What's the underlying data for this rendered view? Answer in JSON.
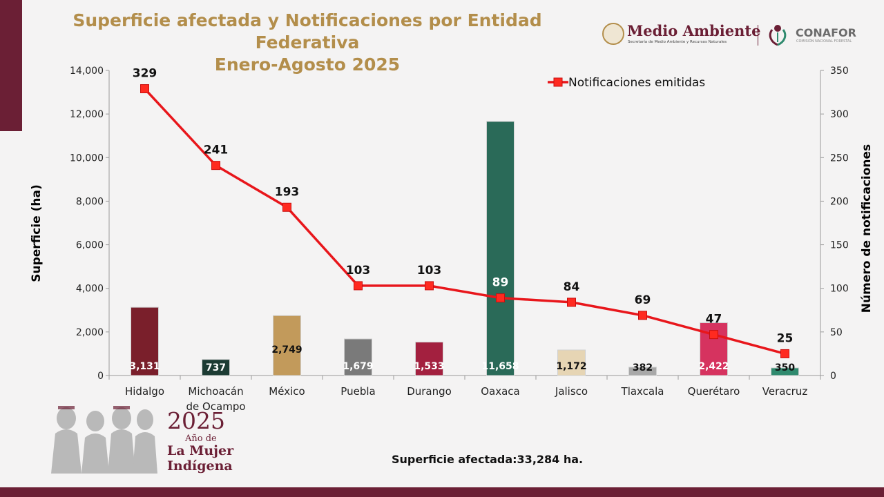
{
  "title_line1": "Superficie afectada y Notificaciones por Entidad Federativa",
  "title_line2": "Enero-Agosto 2025",
  "logos": {
    "semarnat_name": "Medio Ambiente",
    "semarnat_sub": "Secretaría de Medio Ambiente y Recursos Naturales",
    "conafor_name": "CONAFOR",
    "conafor_sub": "COMISIÓN NACIONAL FORESTAL"
  },
  "badge": {
    "year": "2025",
    "line1": "Año de",
    "line2": "La Mujer",
    "line3": "Indígena"
  },
  "total_text": "Superficie afectada:33,284 ha.",
  "colors": {
    "accent": "#6b1f35",
    "title": "#b38e4b",
    "line": "#e8161b"
  },
  "chart_data": {
    "type": "bar",
    "categories": [
      "Hidalgo",
      "Michoacán de Ocampo",
      "México",
      "Puebla",
      "Durango",
      "Oaxaca",
      "Jalisco",
      "Tlaxcala",
      "Querétaro",
      "Veracruz"
    ],
    "category_lines": [
      [
        "Hidalgo"
      ],
      [
        "Michoacán",
        "de Ocampo"
      ],
      [
        "México"
      ],
      [
        "Puebla"
      ],
      [
        "Durango"
      ],
      [
        "Oaxaca"
      ],
      [
        "Jalisco"
      ],
      [
        "Tlaxcala"
      ],
      [
        "Querétaro"
      ],
      [
        "Veracruz"
      ]
    ],
    "bars": {
      "values": [
        3131,
        737,
        2749,
        1679,
        1533,
        11658,
        1172,
        382,
        2422,
        350
      ],
      "labels": [
        "3,131",
        "737",
        "2,749",
        "1,679",
        "1,533",
        "11,658",
        "1,172",
        "382",
        "2,422",
        "350"
      ],
      "colors": [
        "#7a1f2b",
        "#1c3b33",
        "#c29a5b",
        "#7a7a7a",
        "#a3203f",
        "#2a6a58",
        "#e6d5b4",
        "#a8a8a8",
        "#d6335f",
        "#2f8a6e"
      ],
      "label_colors": [
        "#ffffff",
        "#ffffff",
        "#111111",
        "#ffffff",
        "#ffffff",
        "#ffffff",
        "#111111",
        "#111111",
        "#ffffff",
        "#111111"
      ]
    },
    "series": [
      {
        "name": "Notificaciones emitidas",
        "values": [
          329,
          241,
          193,
          103,
          103,
          89,
          84,
          69,
          47,
          25
        ]
      }
    ],
    "ylabel": "Superficie (ha)",
    "y2label": "Número de notificaciones",
    "ylim": [
      0,
      14000
    ],
    "yticks": [
      "0",
      "2,000",
      "4,000",
      "6,000",
      "8,000",
      "10,000",
      "12,000",
      "14,000"
    ],
    "y2lim": [
      0,
      350
    ],
    "y2ticks": [
      "0",
      "50",
      "100",
      "150",
      "200",
      "250",
      "300",
      "350"
    ],
    "legend_position": "top-right"
  }
}
